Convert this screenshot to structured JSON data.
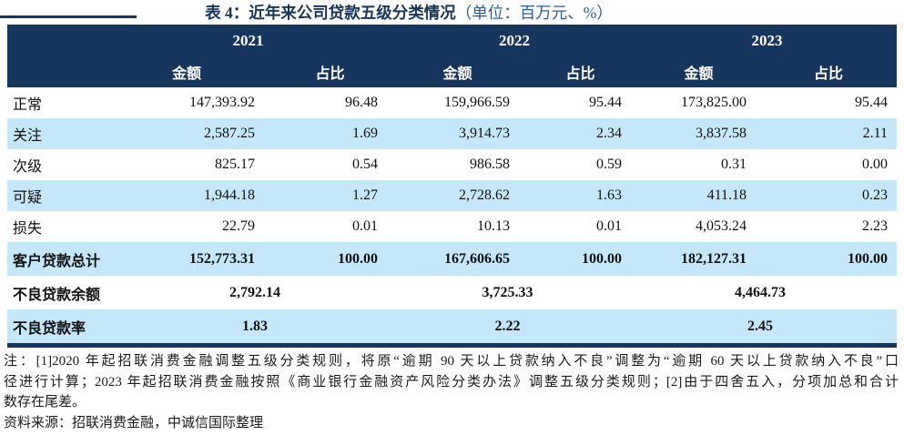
{
  "title": {
    "main": "表 4：近年来公司贷款五级分类情况",
    "unit": "（单位：百万元、%）"
  },
  "colors": {
    "header_navy": "#17365D",
    "row_stripe_blue": "#C4E7FA",
    "title_unit_blue": "#2A5CA6"
  },
  "table": {
    "year_headers": [
      "2021",
      "2022",
      "2023"
    ],
    "sub_headers": {
      "amount": "金额",
      "ratio": "占比"
    },
    "rows": [
      {
        "label": "正常",
        "cells": [
          "147,393.92",
          "96.48",
          "159,966.59",
          "95.44",
          "173,825.00",
          "95.44"
        ]
      },
      {
        "label": "关注",
        "cells": [
          "2,587.25",
          "1.69",
          "3,914.73",
          "2.34",
          "3,837.58",
          "2.11"
        ]
      },
      {
        "label": "次级",
        "cells": [
          "825.17",
          "0.54",
          "986.58",
          "0.59",
          "0.31",
          "0.00"
        ]
      },
      {
        "label": "可疑",
        "cells": [
          "1,944.18",
          "1.27",
          "2,728.62",
          "1.63",
          "411.18",
          "0.23"
        ]
      },
      {
        "label": "损失",
        "cells": [
          "22.79",
          "0.01",
          "10.13",
          "0.01",
          "4,053.24",
          "2.23"
        ]
      },
      {
        "label": "客户贷款总计",
        "cells": [
          "152,773.31",
          "100.00",
          "167,606.65",
          "100.00",
          "182,127.31",
          "100.00"
        ]
      }
    ],
    "merged_rows": [
      {
        "label": "不良贷款余额",
        "cells": [
          "2,792.14",
          "3,725.33",
          "4,464.73"
        ]
      },
      {
        "label": "不良贷款率",
        "cells": [
          "1.83",
          "2.22",
          "2.45"
        ]
      }
    ]
  },
  "notes": {
    "line1": "注：[1]2020 年起招联消费金融调整五级分类规则，将原“逾期 90 天以上贷款纳入不良”调整为“逾期 60 天以上贷款纳入不良”口",
    "line2": "径进行计算；2023 年起招联消费金融按照《商业银行金融资产风险分类办法》调整五级分类规则；[2]由于四舍五入，分项加总和合计",
    "line3": "数存在尾差。",
    "line4": "资料来源：招联消费金融，中诚信国际整理"
  }
}
